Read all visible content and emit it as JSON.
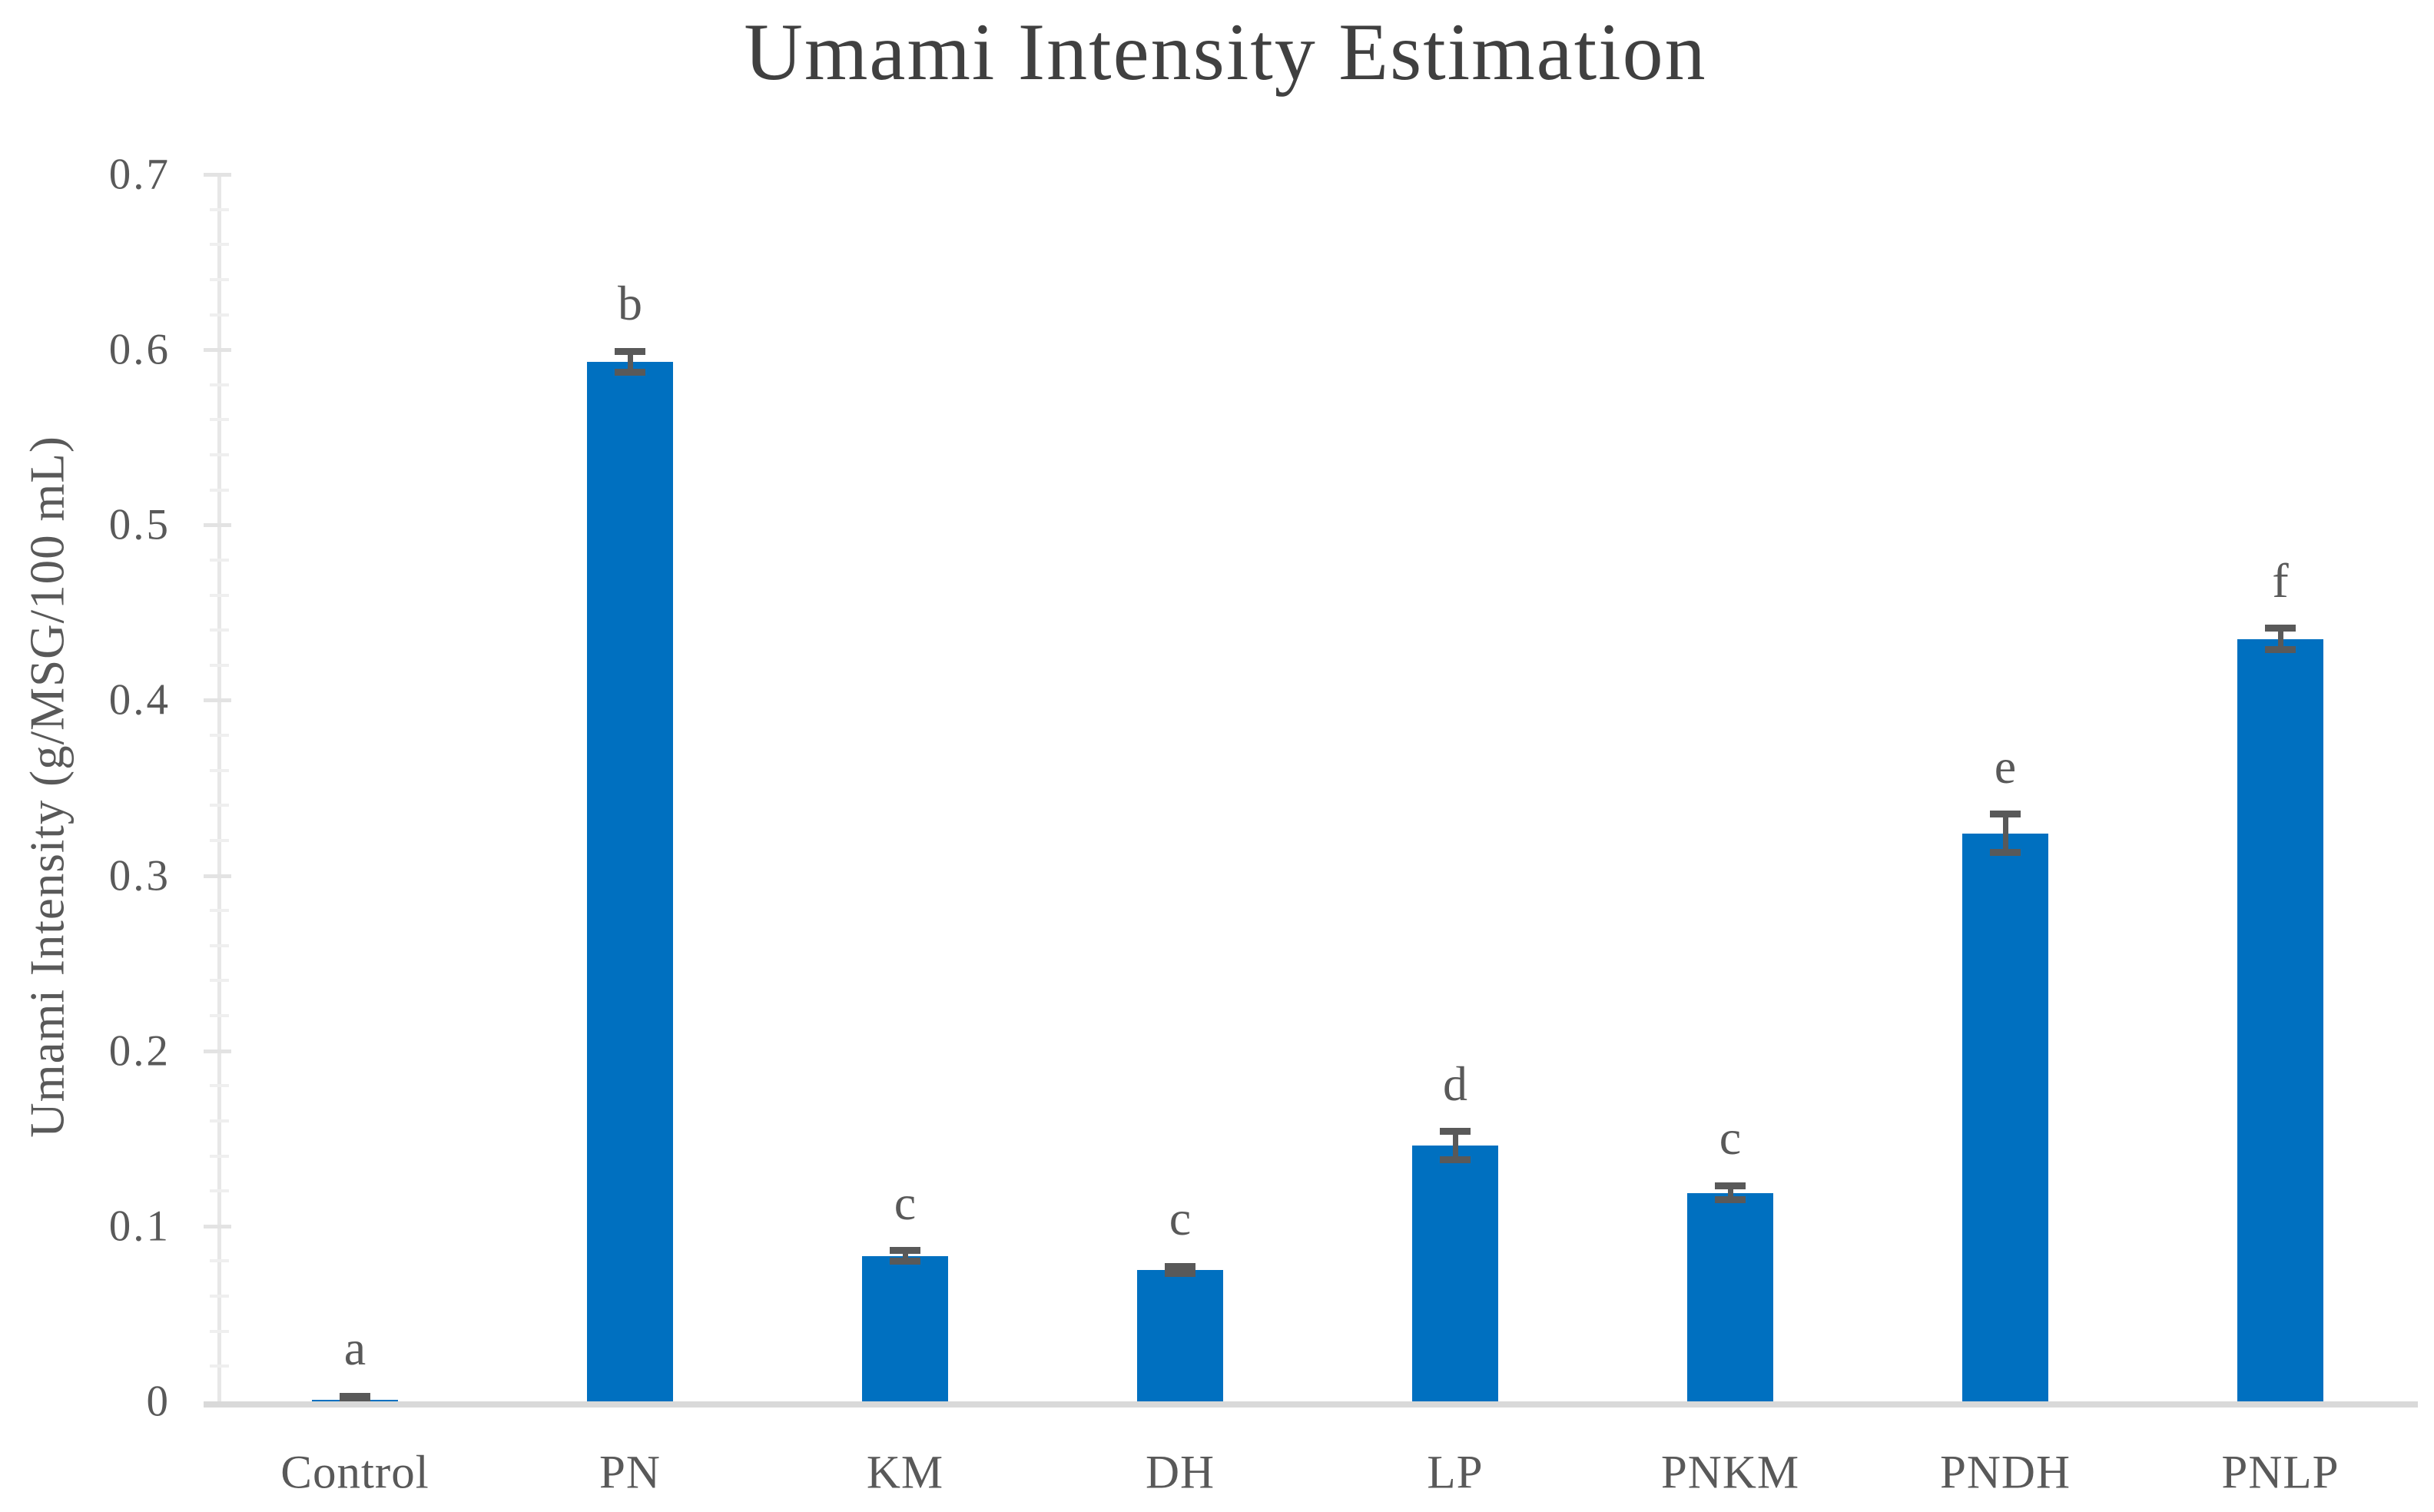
{
  "chart_data": {
    "type": "bar",
    "title": "Umami Intensity Estimation",
    "ylabel": "Umami Intensity (g/MSG/100 mL)",
    "xlabel": "",
    "categories": [
      "Control",
      "PN",
      "KM",
      "DH",
      "LP",
      "PNKM",
      "PNDH",
      "PNLP"
    ],
    "values": [
      0.001,
      0.593,
      0.083,
      0.075,
      0.146,
      0.119,
      0.324,
      0.435
    ],
    "error_bars": [
      0.002,
      0.006,
      0.003,
      0.002,
      0.008,
      0.004,
      0.011,
      0.006
    ],
    "significance_letters": [
      "a",
      "b",
      "c",
      "c",
      "d",
      "c",
      "e",
      "f"
    ],
    "ylim": [
      0,
      0.7
    ],
    "ytick_step": 0.1,
    "yminor_step": 0.02,
    "ytick_labels": [
      "0",
      "0.1",
      "0.2",
      "0.3",
      "0.4",
      "0.5",
      "0.6",
      "0.7"
    ],
    "grid": "off",
    "legend": "none",
    "bar_color": "#0070C0",
    "error_color": "#595959",
    "baseline_color": "#D9D9D9",
    "axis_color": "#E7E7E7",
    "text_color": "#595959",
    "title_color": "#404040"
  }
}
